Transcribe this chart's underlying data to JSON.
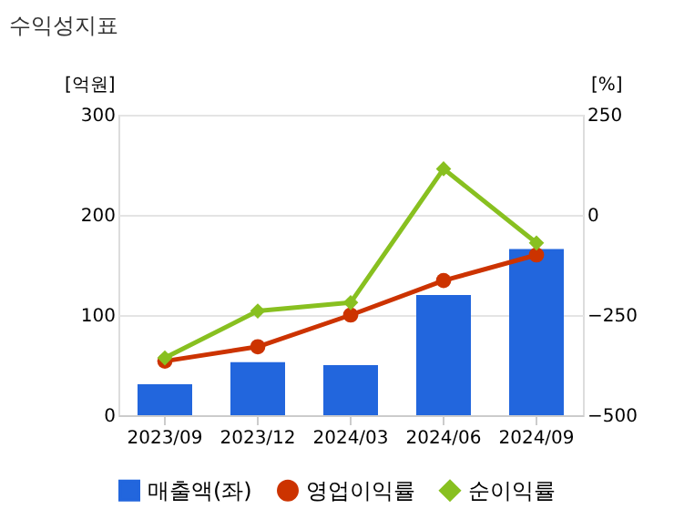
{
  "chart_data": {
    "type": "bar",
    "title": "수익성지표",
    "ylabel": "[억원]",
    "y2label": "[%]",
    "categories": [
      "2023/09",
      "2023/12",
      "2024/03",
      "2024/06",
      "2024/09"
    ],
    "series": [
      {
        "name": "매출액(좌)",
        "color": "#2266dd",
        "values": [
          31,
          53,
          50,
          120,
          166
        ]
      },
      {
        "name": "영업이익률",
        "type": "line",
        "axis": "y2",
        "marker": "circle",
        "color": "#cc3300",
        "values": [
          -365,
          -329,
          -250,
          -164,
          -100
        ]
      },
      {
        "name": "순이익률",
        "type": "line",
        "axis": "y2",
        "marker": "diamond",
        "color": "#88c020",
        "values": [
          -357,
          -240,
          -219,
          115,
          -70
        ]
      }
    ],
    "ylim": [
      0,
      300
    ],
    "yticks": [
      0,
      100,
      200,
      300
    ],
    "y2lim": [
      -500,
      250
    ],
    "y2ticks": [
      -500,
      -250,
      0,
      250
    ],
    "grid": "y",
    "legend": "bottom"
  }
}
